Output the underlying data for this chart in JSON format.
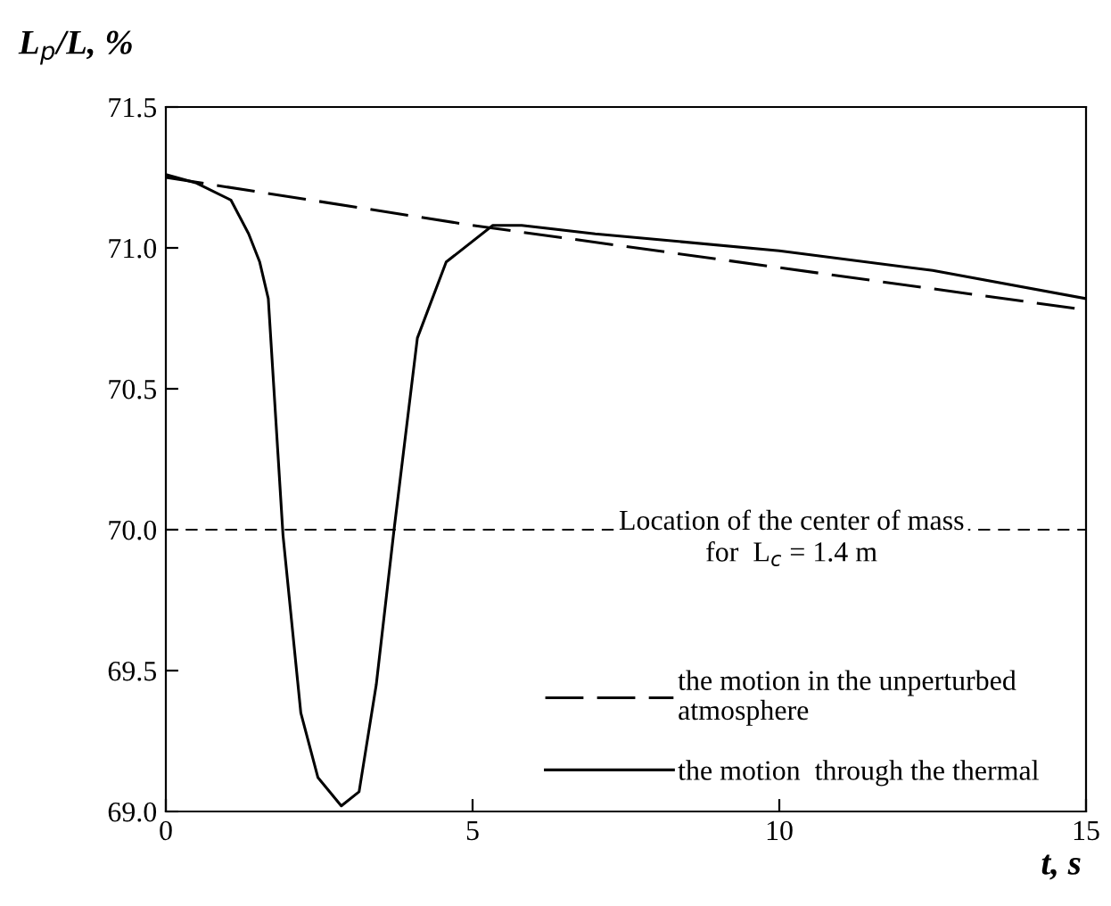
{
  "chart_data": {
    "type": "line",
    "xlabel": "t, s",
    "ylabel": "L$_{p}$/L, %",
    "xlim": [
      0,
      15
    ],
    "ylim": [
      69.0,
      71.5
    ],
    "xticks": [
      0,
      5,
      10,
      15
    ],
    "yticks": [
      {
        "value": 69.0,
        "label": "69.0"
      },
      {
        "value": 69.5,
        "label": "69.5"
      },
      {
        "value": 70.0,
        "label": "70.0"
      },
      {
        "value": 70.5,
        "label": "70.5"
      },
      {
        "value": 71.0,
        "label": "71.0"
      },
      {
        "value": 71.5,
        "label": "71.5"
      }
    ],
    "series": [
      {
        "name": "the motion in the unperturbed\natmosphere",
        "color": "#000000",
        "line_style": "dashed",
        "x": [
          0,
          5,
          10,
          15
        ],
        "values": [
          71.25,
          71.08,
          70.93,
          70.78
        ]
      },
      {
        "name": "the motion  through the thermal",
        "color": "#000000",
        "line_style": "solid",
        "x": [
          0,
          0.5,
          1.06,
          1.35,
          1.53,
          1.67,
          1.91,
          2.2,
          2.48,
          2.86,
          3.15,
          3.43,
          3.72,
          4.1,
          4.57,
          5.33,
          5.8,
          7,
          10,
          12.5,
          15
        ],
        "values": [
          71.26,
          71.23,
          71.17,
          71.05,
          70.95,
          70.82,
          69.98,
          69.35,
          69.12,
          69.02,
          69.07,
          69.45,
          70.0,
          70.68,
          70.95,
          71.08,
          71.08,
          71.05,
          70.99,
          70.92,
          70.82
        ]
      }
    ],
    "ref_lines": [
      {
        "axis": "y",
        "value": 70.0,
        "line_style": "dashed",
        "color": "#000000"
      }
    ],
    "annotations": [
      {
        "text": "Location of the center of mass\nfor  L$_{c}$ = 1.4 m",
        "x": 10.2,
        "y": 70.0
      }
    ],
    "legend": "right",
    "grid": false
  }
}
